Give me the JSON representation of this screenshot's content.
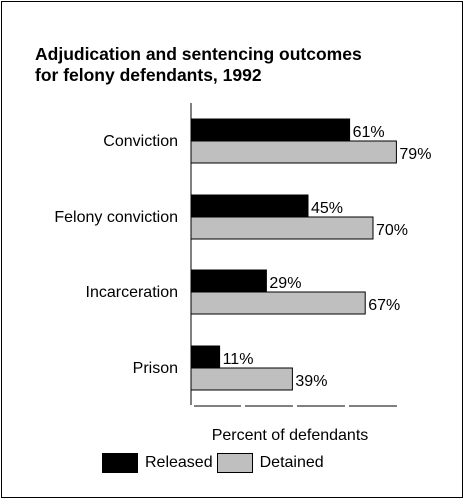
{
  "chart_data": {
    "type": "bar",
    "orientation": "horizontal",
    "title_lines": [
      "Adjudication and sentencing outcomes",
      "for felony defendants, 1992"
    ],
    "categories": [
      "Conviction",
      "Felony conviction",
      "Incarceration",
      "Prison"
    ],
    "series": [
      {
        "name": "Released",
        "values": [
          61,
          45,
          29,
          11
        ],
        "value_labels": [
          "61%",
          "45%",
          "29%",
          "11%"
        ],
        "color": "#000000"
      },
      {
        "name": "Detained",
        "values": [
          79,
          70,
          67,
          39
        ],
        "value_labels": [
          "79%",
          "70%",
          "67%",
          "39%"
        ],
        "color": "#bfbfbf"
      }
    ],
    "xlabel": "Percent of defendants",
    "ylabel": "",
    "xlim": [
      0,
      80
    ],
    "grid": false,
    "legend_position": "bottom",
    "x_tick_labels_shown": false
  }
}
